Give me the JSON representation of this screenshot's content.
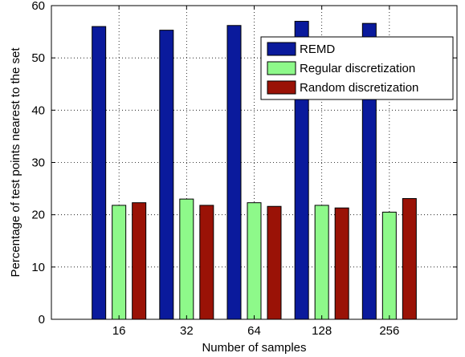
{
  "chart_data": {
    "type": "bar",
    "title": "",
    "xlabel": "Number of samples",
    "ylabel": "Percentage of test points nearest to the set",
    "categories": [
      "16",
      "32",
      "64",
      "128",
      "256"
    ],
    "ylim": [
      0,
      60
    ],
    "yticks": [
      0,
      10,
      20,
      30,
      40,
      50,
      60
    ],
    "grid": true,
    "legend_position": "top-right",
    "series": [
      {
        "name": "REMD",
        "color": "#0a1a9c",
        "values": [
          56.0,
          55.3,
          56.2,
          57.0,
          56.6
        ]
      },
      {
        "name": "Regular discretization",
        "color": "#8ef98a",
        "values": [
          21.8,
          23.0,
          22.3,
          21.8,
          20.5
        ]
      },
      {
        "name": "Random discretization",
        "color": "#9a1206",
        "values": [
          22.3,
          21.8,
          21.6,
          21.3,
          23.1
        ]
      }
    ]
  }
}
